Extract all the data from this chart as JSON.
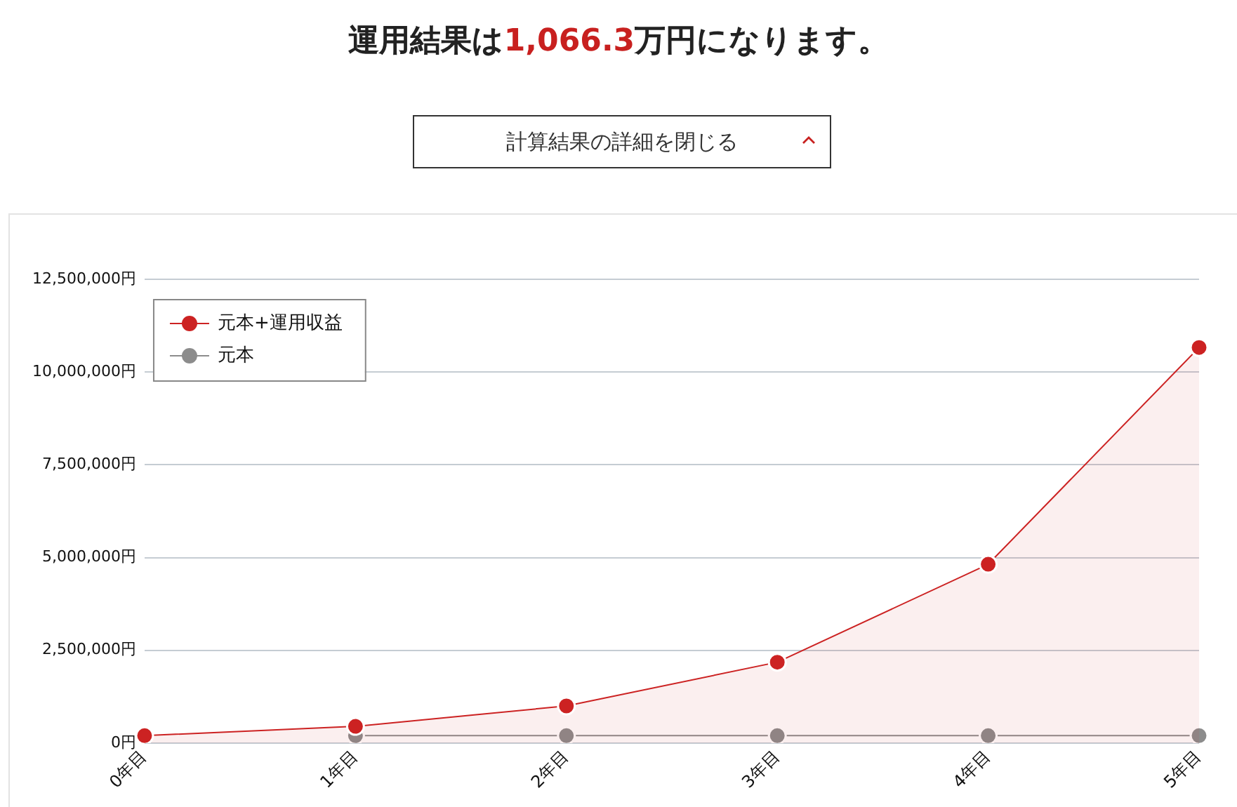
{
  "chart_data": {
    "type": "line",
    "title": "運用結果は1,066.3万円になります。",
    "annotations": [
      "計算結果の詳細を閉じる"
    ],
    "categories": [
      "0年目",
      "1年目",
      "2年目",
      "3年目",
      "4年目",
      "5年目"
    ],
    "series": [
      {
        "name": "元本+運用収益",
        "type": "area",
        "color": "#cc2222",
        "values": [
          200000,
          450000,
          1000000,
          2180000,
          4820000,
          10663000
        ]
      },
      {
        "name": "元本",
        "type": "line",
        "color": "#8c8c8c",
        "values": [
          null,
          200000,
          200000,
          200000,
          200000,
          200000
        ]
      }
    ],
    "ylim": [
      0,
      12500000
    ],
    "yticks": [
      {
        "value": 0,
        "label": "0円"
      },
      {
        "value": 2500000,
        "label": "2,500,000円"
      },
      {
        "value": 5000000,
        "label": "5,000,000円"
      },
      {
        "value": 7500000,
        "label": "7,500,000円"
      },
      {
        "value": 10000000,
        "label": "10,000,000円"
      },
      {
        "value": 12500000,
        "label": "12,500,000円"
      }
    ],
    "grid": "y",
    "legend": "top left",
    "marker": "circle"
  }
}
